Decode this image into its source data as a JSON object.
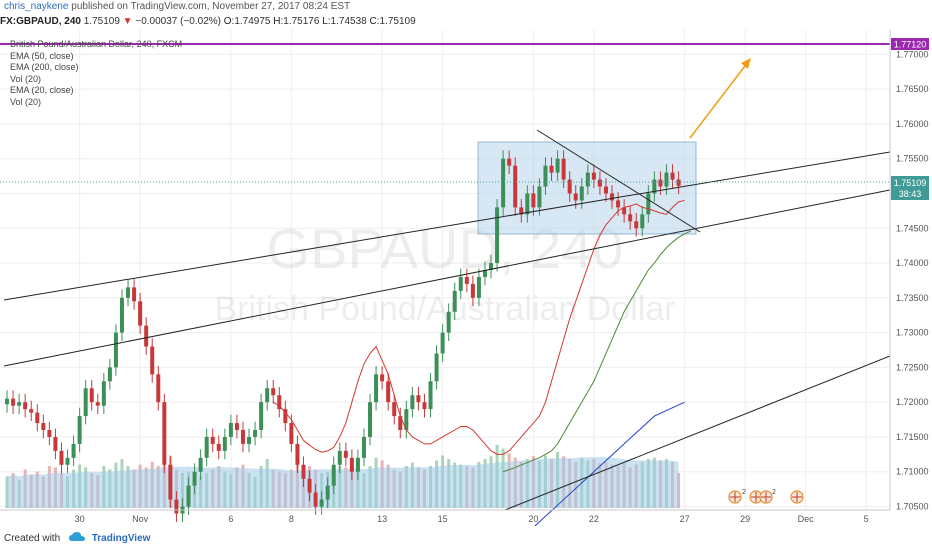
{
  "header": {
    "user": "chris_naykene",
    "published": "published on TradingView.com, November 27, 2017 08:24 EST"
  },
  "quote": {
    "symbol": "FX:GBPAUD, 240",
    "last": "1.75109",
    "arrow": "▼",
    "change": "−0.00037 (−0.02%)",
    "o_label": "O:",
    "o_value": "1.74975",
    "h_label": "H:",
    "h_value": "1.75176",
    "l_label": "L:",
    "l_value": "1.74538",
    "c_label": "C:",
    "c_value": "1.75109"
  },
  "legend": {
    "title": "British Pound/Australian Dollar, 240, FXCM",
    "items": [
      "EMA (50, close)",
      "EMA (200, close)",
      "Vol (20)",
      "EMA (20, close)",
      "Vol (20)"
    ]
  },
  "watermark": {
    "symbol": "GBPAUD, 240",
    "name": "British Pound/Australian Dollar"
  },
  "price_tags": {
    "resistance": "1.77120",
    "current": "1.75109",
    "countdown": "38:43"
  },
  "footer": {
    "created": "Created with",
    "brand": "TradingView"
  },
  "colors": {
    "up": "#3d8f58",
    "down": "#c8383b",
    "ema20": "#d43a33",
    "ema50": "#4d8a33",
    "ema200": "#2441c9",
    "resistance": "#9c27b0",
    "arrow": "#f39c12",
    "box": "#b7d4ea",
    "volume": "#9fcbe8"
  },
  "chart_data": {
    "type": "candlestick",
    "symbol": "GBPAUD",
    "timeframe": "240",
    "ylim": [
      1.7045,
      1.7735
    ],
    "y_ticks": [
      "1.77000",
      "1.76500",
      "1.76000",
      "1.75500",
      "1.75000",
      "1.74500",
      "1.74000",
      "1.73500",
      "1.73000",
      "1.72500",
      "1.72000",
      "1.71500",
      "1.71000",
      "1.70500"
    ],
    "y_tick_values": [
      1.77,
      1.765,
      1.76,
      1.755,
      1.75,
      1.745,
      1.74,
      1.735,
      1.73,
      1.725,
      1.72,
      1.715,
      1.71,
      1.705
    ],
    "x_ticks": [
      {
        "label": "30",
        "bar": 12
      },
      {
        "label": "Nov",
        "bar": 22
      },
      {
        "label": "6",
        "bar": 37
      },
      {
        "label": "8",
        "bar": 47
      },
      {
        "label": "13",
        "bar": 62
      },
      {
        "label": "15",
        "bar": 72
      },
      {
        "label": "20",
        "bar": 87
      },
      {
        "label": "22",
        "bar": 97
      },
      {
        "label": "27",
        "bar": 112
      },
      {
        "label": "29",
        "bar": 122
      },
      {
        "label": "Dec",
        "bar": 132
      },
      {
        "label": "5",
        "bar": 142
      }
    ],
    "close": [
      1.7205,
      1.7195,
      1.72,
      1.719,
      1.7185,
      1.717,
      1.716,
      1.715,
      1.713,
      1.711,
      1.712,
      1.714,
      1.718,
      1.722,
      1.72,
      1.7195,
      1.723,
      1.725,
      1.73,
      1.735,
      1.7365,
      1.7345,
      1.731,
      1.728,
      1.724,
      1.72,
      1.711,
      1.706,
      1.704,
      1.705,
      1.708,
      1.71,
      1.712,
      1.715,
      1.714,
      1.713,
      1.715,
      1.717,
      1.716,
      1.714,
      1.715,
      1.716,
      1.72,
      1.722,
      1.721,
      1.719,
      1.717,
      1.714,
      1.711,
      1.709,
      1.707,
      1.705,
      1.706,
      1.708,
      1.711,
      1.713,
      1.712,
      1.71,
      1.712,
      1.715,
      1.72,
      1.724,
      1.723,
      1.72,
      1.718,
      1.716,
      1.719,
      1.721,
      1.72,
      1.719,
      1.723,
      1.727,
      1.73,
      1.733,
      1.736,
      1.738,
      1.737,
      1.735,
      1.738,
      1.739,
      1.74,
      1.748,
      1.755,
      1.754,
      1.748,
      1.747,
      1.75,
      1.748,
      1.751,
      1.754,
      1.753,
      1.755,
      1.752,
      1.75,
      1.749,
      1.751,
      1.753,
      1.752,
      1.751,
      1.75,
      1.749,
      1.748,
      1.747,
      1.746,
      1.745,
      1.747,
      1.75,
      1.752,
      1.751,
      1.753,
      1.752,
      1.7511
    ],
    "ema20": [
      1.72,
      1.7195,
      1.7185,
      1.7175,
      1.716,
      1.7145,
      1.7138,
      1.7132,
      1.7128,
      1.713,
      1.7135,
      1.715,
      1.717,
      1.72,
      1.723,
      1.7255,
      1.727,
      1.728,
      1.726,
      1.724,
      1.721,
      1.718,
      1.716,
      1.715,
      1.7145,
      1.714,
      1.714,
      1.7145,
      1.715,
      1.7155,
      1.716,
      1.7165,
      1.7165,
      1.716,
      1.715,
      1.714,
      1.713,
      1.7125,
      1.7125,
      1.713,
      1.714,
      1.715,
      1.716,
      1.717,
      1.718,
      1.72,
      1.723,
      1.726,
      1.729,
      1.732,
      1.7345,
      1.737,
      1.7395,
      1.742,
      1.744,
      1.7455,
      1.7465,
      1.7475,
      1.748,
      1.7482,
      1.7485,
      1.748,
      1.7478,
      1.7475,
      1.7472,
      1.747,
      1.748,
      1.7488,
      1.749
    ],
    "ema20_start_bar": 44,
    "ema50": [
      1.71,
      1.7103,
      1.7106,
      1.711,
      1.7113,
      1.7117,
      1.712,
      1.7125,
      1.713,
      1.714,
      1.7155,
      1.717,
      1.7185,
      1.72,
      1.7215,
      1.723,
      1.725,
      1.727,
      1.729,
      1.731,
      1.733,
      1.7345,
      1.736,
      1.7375,
      1.739,
      1.74,
      1.7412,
      1.7422,
      1.743,
      1.7437,
      1.7442,
      1.7446
    ],
    "ema50_start_bar": 82,
    "ema200": [
      1.702,
      1.706,
      1.71,
      1.714,
      1.718,
      1.72
    ],
    "ema200_start_bar": 87,
    "ema200_step": 5,
    "volume": [
      0.45,
      0.5,
      0.4,
      0.55,
      0.48,
      0.52,
      0.45,
      0.6,
      0.58,
      0.5,
      0.45,
      0.55,
      0.62,
      0.58,
      0.5,
      0.47,
      0.6,
      0.55,
      0.65,
      0.7,
      0.6,
      0.55,
      0.62,
      0.58,
      0.66,
      0.6,
      0.72,
      0.75,
      0.55,
      0.5,
      0.52,
      0.48,
      0.45,
      0.5,
      0.55,
      0.6,
      0.52,
      0.48,
      0.58,
      0.62,
      0.5,
      0.45,
      0.6,
      0.7,
      0.55,
      0.52,
      0.5,
      0.55,
      0.62,
      0.58,
      0.6,
      0.55,
      0.5,
      0.52,
      0.56,
      0.6,
      0.58,
      0.62,
      0.55,
      0.5,
      0.6,
      0.72,
      0.68,
      0.62,
      0.55,
      0.52,
      0.6,
      0.65,
      0.58,
      0.55,
      0.6,
      0.68,
      0.75,
      0.7,
      0.65,
      0.62,
      0.6,
      0.58,
      0.66,
      0.7,
      0.74,
      0.9,
      0.85,
      0.78,
      0.72,
      0.66,
      0.7,
      0.74,
      0.68,
      0.75,
      0.7,
      0.8,
      0.74,
      0.7,
      0.66,
      0.72,
      0.68,
      0.7,
      0.64,
      0.66,
      0.62,
      0.6,
      0.64,
      0.58,
      0.62,
      0.66,
      0.7,
      0.72,
      0.68,
      0.7,
      0.66,
      0.5
    ],
    "resistance_level": 1.7712,
    "current_price": 1.75109
  }
}
